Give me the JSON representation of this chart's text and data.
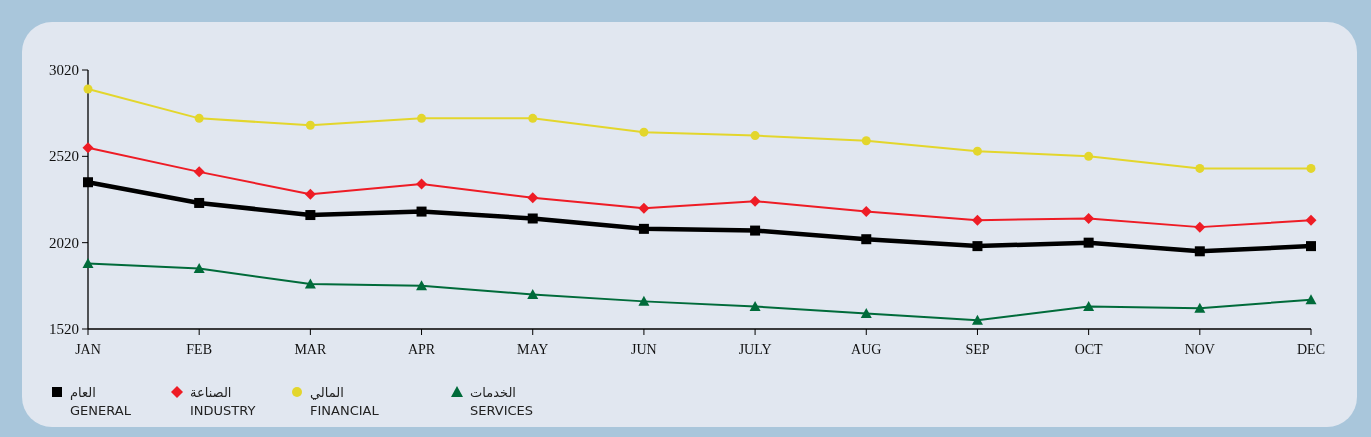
{
  "chart_data": {
    "type": "line",
    "categories": [
      "JAN",
      "FEB",
      "MAR",
      "APR",
      "MAY",
      "JUN",
      "JULY",
      "AUG",
      "SEP",
      "OCT",
      "NOV",
      "DEC"
    ],
    "series": [
      {
        "name": "العام\nGENERAL",
        "color": "#000000",
        "marker": "square",
        "values": [
          2370,
          2250,
          2180,
          2200,
          2160,
          2100,
          2090,
          2040,
          2000,
          2020,
          1970,
          2000
        ]
      },
      {
        "name": "الصناعة\nINDUSTRY",
        "color": "#ee1c25",
        "marker": "diamond",
        "values": [
          2570,
          2430,
          2300,
          2360,
          2280,
          2220,
          2260,
          2200,
          2150,
          2160,
          2110,
          2150
        ]
      },
      {
        "name": "المالي\nFINANCIAL",
        "color": "#e3d62c",
        "marker": "circle",
        "values": [
          2910,
          2740,
          2700,
          2740,
          2740,
          2660,
          2640,
          2610,
          2550,
          2520,
          2450,
          2450
        ]
      },
      {
        "name": "الخدمات\nSERVICES",
        "color": "#006b3a",
        "marker": "triangle",
        "values": [
          1900,
          1870,
          1780,
          1770,
          1720,
          1680,
          1650,
          1610,
          1570,
          1650,
          1640,
          1690
        ]
      }
    ],
    "ylim": [
      1520,
      3020
    ],
    "yticks": [
      1520,
      2020,
      2520,
      3020
    ],
    "grid": false,
    "legend": "bottom",
    "line_style": "solid"
  }
}
